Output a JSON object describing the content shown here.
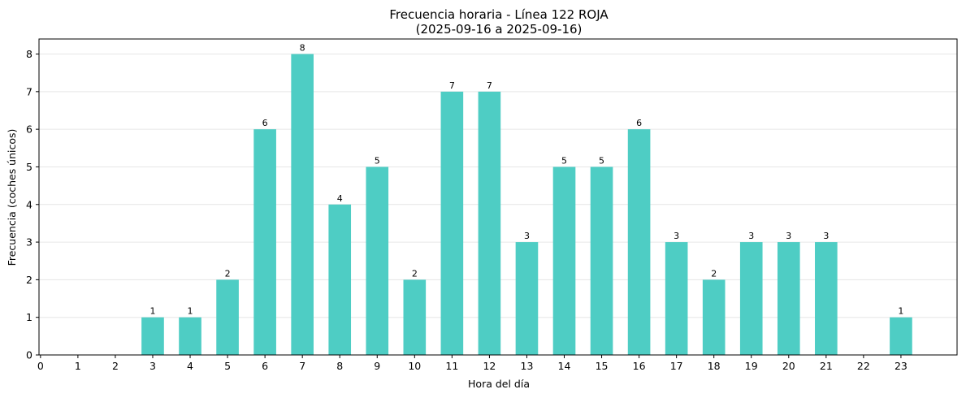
{
  "chart_data": {
    "type": "bar",
    "title": "Frecuencia horaria - Línea 122 ROJA",
    "subtitle": "(2025-09-16 a 2025-09-16)",
    "xlabel": "Hora del día",
    "ylabel": "Frecuencia (coches únicos)",
    "categories": [
      "0",
      "1",
      "2",
      "3",
      "4",
      "5",
      "6",
      "7",
      "8",
      "9",
      "10",
      "11",
      "12",
      "13",
      "14",
      "15",
      "16",
      "17",
      "18",
      "19",
      "20",
      "21",
      "22",
      "23"
    ],
    "values": [
      0,
      0,
      0,
      1,
      1,
      2,
      6,
      8,
      4,
      5,
      2,
      7,
      7,
      3,
      5,
      5,
      6,
      3,
      2,
      3,
      3,
      3,
      0,
      1
    ],
    "xlim": [
      -0.04,
      24.5
    ],
    "ylim": [
      0,
      8.4
    ],
    "yticks": [
      0,
      1,
      2,
      3,
      4,
      5,
      6,
      7,
      8
    ],
    "grid": "horizontal",
    "bar_color": "#4ECDC4",
    "show_value_labels": true
  }
}
